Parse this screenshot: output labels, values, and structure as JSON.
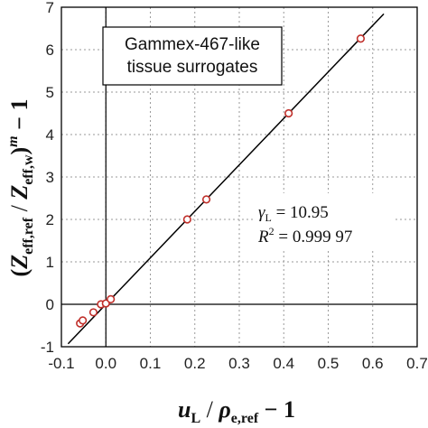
{
  "chart_data": {
    "type": "scatter",
    "title": "",
    "xlim": [
      -0.1,
      0.7
    ],
    "ylim": [
      -1,
      7
    ],
    "x_ticks": [
      "-0.1",
      "0.0",
      "0.1",
      "0.2",
      "0.3",
      "0.4",
      "0.5",
      "0.6",
      "0.7"
    ],
    "y_ticks": [
      "-1",
      "0",
      "1",
      "2",
      "3",
      "4",
      "5",
      "6",
      "7"
    ],
    "grid": true,
    "points": {
      "x": [
        -0.058,
        -0.052,
        -0.028,
        -0.011,
        0.0,
        0.011,
        0.183,
        0.226,
        0.411,
        0.573
      ],
      "y": [
        -0.45,
        -0.38,
        -0.19,
        0.0,
        0.02,
        0.12,
        2.0,
        2.47,
        4.5,
        6.26
      ]
    },
    "fit_line": {
      "slope": 10.95,
      "intercept": 0.0,
      "x_range": [
        -0.085,
        0.625
      ]
    },
    "annotation_box": {
      "line1": "Gammex-467-like",
      "line2": "tissue surrogates"
    },
    "stats": {
      "gamma_symbol": "γ",
      "gamma_sub": "L",
      "gamma_value": " = 10.95",
      "r2_symbol": "R",
      "r2_sup": "2",
      "r2_value": " = 0.999 97"
    },
    "xlabel": {
      "u": "u",
      "u_sub": "L",
      "slash": " / ",
      "rho": "ρ",
      "rho_sub": "e,ref",
      "tail": " − 1"
    },
    "ylabel": {
      "open": "(",
      "z1": "Z",
      "z1_sub": "eff,ref",
      "slash": " / ",
      "z2": "Z",
      "z2_sub": "eff,w",
      "close": ")",
      "m": "m",
      "tail": " − 1"
    },
    "marker_color": "#c0302b",
    "line_color": "#000000"
  }
}
